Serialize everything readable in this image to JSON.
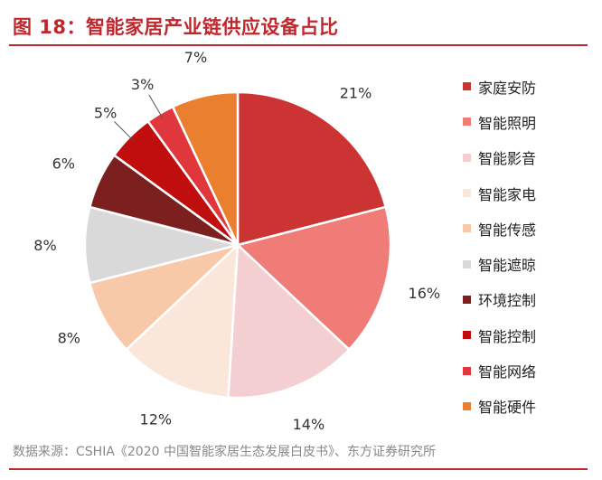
{
  "title": "图 18：智能家居产业链供应设备占比",
  "source": "数据来源：CSHIA《2020 中国智能家居生态发展白皮书》、东方证券研究所",
  "colors": {
    "accent": "#c0272d",
    "slices": [
      "#cc3333",
      "#ef7c76",
      "#f4cfd1",
      "#fbe6da",
      "#f8c9a8",
      "#d9d9d9",
      "#7b1f1f",
      "#c00d0d",
      "#e0373d",
      "#e97f2f"
    ]
  },
  "chart_data": {
    "type": "pie",
    "title": "智能家居产业链供应设备占比",
    "categories": [
      "家庭安防",
      "智能照明",
      "智能影音",
      "智能家电",
      "智能传感",
      "智能遮晾",
      "环境控制",
      "智能控制",
      "智能网络",
      "智能硬件"
    ],
    "values": [
      21,
      16,
      14,
      12,
      8,
      8,
      6,
      5,
      3,
      7
    ],
    "labels": [
      "21%",
      "16%",
      "14%",
      "12%",
      "8%",
      "8%",
      "6%",
      "5%",
      "3%",
      "7%"
    ],
    "legend_position": "right"
  }
}
